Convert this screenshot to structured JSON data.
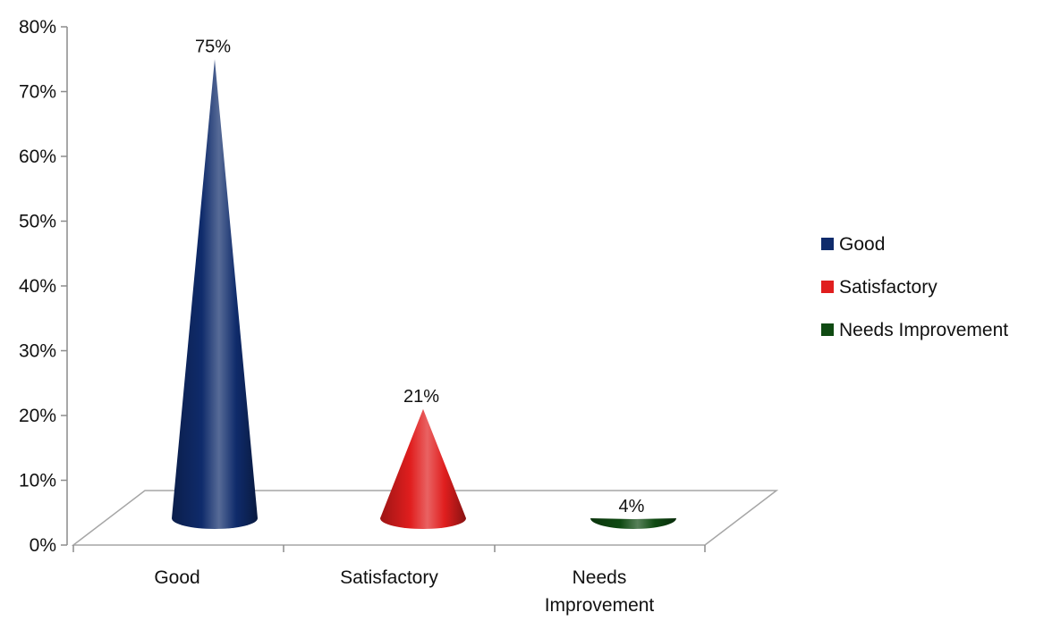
{
  "chart_data": {
    "type": "bar",
    "style": "3d-cone",
    "categories": [
      "Good",
      "Satisfactory",
      "Needs Improvement"
    ],
    "values": [
      75,
      21,
      4
    ],
    "data_labels": [
      "75%",
      "21%",
      "4%"
    ],
    "ylim": [
      0,
      80
    ],
    "yticks": [
      0,
      10,
      20,
      30,
      40,
      50,
      60,
      70,
      80
    ],
    "ytick_labels": [
      "0%",
      "10%",
      "20%",
      "30%",
      "40%",
      "50%",
      "60%",
      "70%",
      "80%"
    ],
    "grid": false,
    "legend": {
      "placement": "right",
      "entries": [
        "Good",
        "Satisfactory",
        "Needs Improvement"
      ]
    },
    "colors": [
      "#0f2b6b",
      "#e01e1e",
      "#0f4a12"
    ]
  }
}
